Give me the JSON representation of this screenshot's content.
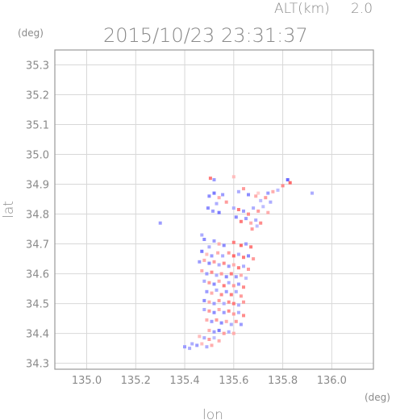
{
  "header": {
    "altitude_label": "ALT(km)",
    "altitude_value": "2.0",
    "timestamp": "2015/10/23 23:31:37"
  },
  "chart_data": {
    "type": "heatmap",
    "xlabel": "lon",
    "ylabel": "lat",
    "x_unit": "(deg)",
    "y_unit": "(deg)",
    "xlim": [
      134.87,
      136.17
    ],
    "ylim": [
      34.28,
      35.35
    ],
    "x_ticks": [
      135.0,
      135.2,
      135.4,
      135.6,
      135.8,
      136.0
    ],
    "x_tick_labels": [
      "135.0",
      "135.2",
      "135.4",
      "135.6",
      "135.8",
      "136.0"
    ],
    "y_ticks": [
      34.3,
      34.4,
      34.5,
      34.6,
      34.7,
      34.8,
      34.9,
      35.0,
      35.1,
      35.2,
      35.3
    ],
    "y_tick_labels": [
      "34.3",
      "34.4",
      "34.5",
      "34.6",
      "34.7",
      "34.8",
      "34.9",
      "35.0",
      "35.1",
      "35.2",
      "35.3"
    ],
    "grid": true,
    "colors": {
      "positive": "#ff5a5a",
      "negative": "#5a5aff",
      "frame": "#9a9a9a",
      "grid": "#d8d8d8"
    },
    "cells": [
      [
        135.505,
        34.92,
        0.8
      ],
      [
        135.52,
        34.915,
        -0.6
      ],
      [
        135.6,
        34.925,
        0.4
      ],
      [
        135.82,
        34.915,
        -0.9
      ],
      [
        135.83,
        34.905,
        0.9
      ],
      [
        135.8,
        34.895,
        0.7
      ],
      [
        135.92,
        34.87,
        -0.5
      ],
      [
        135.78,
        34.88,
        -0.4
      ],
      [
        135.76,
        34.875,
        0.5
      ],
      [
        135.74,
        34.87,
        -0.6
      ],
      [
        135.7,
        34.87,
        0.3
      ],
      [
        135.64,
        34.885,
        0.6
      ],
      [
        135.62,
        34.875,
        -0.5
      ],
      [
        135.66,
        34.865,
        -0.7
      ],
      [
        135.69,
        34.86,
        0.5
      ],
      [
        135.71,
        34.845,
        -0.4
      ],
      [
        135.73,
        34.855,
        0.6
      ],
      [
        135.75,
        34.84,
        -0.5
      ],
      [
        135.52,
        34.87,
        -0.8
      ],
      [
        135.5,
        34.86,
        -0.7
      ],
      [
        135.54,
        34.855,
        0.5
      ],
      [
        135.555,
        34.865,
        -0.6
      ],
      [
        135.53,
        34.835,
        -0.5
      ],
      [
        135.57,
        34.84,
        0.6
      ],
      [
        135.495,
        34.82,
        -0.7
      ],
      [
        135.515,
        34.81,
        -0.6
      ],
      [
        135.54,
        34.805,
        -0.8
      ],
      [
        135.6,
        34.82,
        -0.5
      ],
      [
        135.62,
        34.815,
        0.8
      ],
      [
        135.64,
        34.81,
        -0.6
      ],
      [
        135.66,
        34.8,
        0.7
      ],
      [
        135.68,
        34.82,
        -0.5
      ],
      [
        135.7,
        34.81,
        0.6
      ],
      [
        135.72,
        34.825,
        -0.4
      ],
      [
        135.74,
        34.805,
        0.5
      ],
      [
        135.61,
        34.79,
        -0.7
      ],
      [
        135.63,
        34.775,
        0.8
      ],
      [
        135.65,
        34.785,
        -0.6
      ],
      [
        135.67,
        34.77,
        0.5
      ],
      [
        135.69,
        34.78,
        -0.5
      ],
      [
        135.71,
        34.77,
        0.7
      ],
      [
        135.675,
        34.75,
        0.6
      ],
      [
        135.695,
        34.76,
        -0.4
      ],
      [
        135.3,
        34.77,
        -0.6
      ],
      [
        135.47,
        34.73,
        -0.5
      ],
      [
        135.48,
        34.715,
        -0.7
      ],
      [
        135.52,
        34.71,
        -0.6
      ],
      [
        135.54,
        34.7,
        0.5
      ],
      [
        135.56,
        34.695,
        -0.7
      ],
      [
        135.6,
        34.705,
        0.8
      ],
      [
        135.63,
        34.695,
        0.9
      ],
      [
        135.65,
        34.7,
        -0.6
      ],
      [
        135.67,
        34.69,
        0.8
      ],
      [
        135.5,
        34.69,
        -0.5
      ],
      [
        135.47,
        34.675,
        -0.8
      ],
      [
        135.49,
        34.665,
        0.4
      ],
      [
        135.51,
        34.66,
        -0.6
      ],
      [
        135.535,
        34.67,
        0.5
      ],
      [
        135.555,
        34.66,
        -0.5
      ],
      [
        135.58,
        34.67,
        0.6
      ],
      [
        135.6,
        34.66,
        0.9
      ],
      [
        135.62,
        34.665,
        -0.5
      ],
      [
        135.64,
        34.655,
        0.8
      ],
      [
        135.66,
        34.66,
        -0.7
      ],
      [
        135.68,
        34.65,
        0.6
      ],
      [
        135.46,
        34.64,
        -0.6
      ],
      [
        135.48,
        34.645,
        0.5
      ],
      [
        135.5,
        34.635,
        -0.7
      ],
      [
        135.52,
        34.64,
        0.6
      ],
      [
        135.54,
        34.63,
        -0.5
      ],
      [
        135.56,
        34.635,
        0.7
      ],
      [
        135.58,
        34.625,
        -0.6
      ],
      [
        135.6,
        34.63,
        0.5
      ],
      [
        135.62,
        34.62,
        0.8
      ],
      [
        135.64,
        34.625,
        -0.5
      ],
      [
        135.66,
        34.615,
        0.6
      ],
      [
        135.47,
        34.61,
        0.5
      ],
      [
        135.49,
        34.6,
        -0.6
      ],
      [
        135.51,
        34.605,
        0.7
      ],
      [
        135.53,
        34.595,
        -0.5
      ],
      [
        135.55,
        34.6,
        0.6
      ],
      [
        135.57,
        34.59,
        -0.7
      ],
      [
        135.59,
        34.6,
        0.8
      ],
      [
        135.61,
        34.59,
        -0.6
      ],
      [
        135.63,
        34.595,
        0.5
      ],
      [
        135.65,
        34.585,
        -0.4
      ],
      [
        135.48,
        34.575,
        -0.5
      ],
      [
        135.5,
        34.57,
        0.6
      ],
      [
        135.52,
        34.565,
        -0.7
      ],
      [
        135.54,
        34.575,
        0.5
      ],
      [
        135.56,
        34.56,
        0.8
      ],
      [
        135.58,
        34.57,
        -0.5
      ],
      [
        135.6,
        34.56,
        0.6
      ],
      [
        135.62,
        34.565,
        -0.6
      ],
      [
        135.64,
        34.555,
        0.7
      ],
      [
        135.49,
        34.54,
        -0.6
      ],
      [
        135.51,
        34.535,
        0.5
      ],
      [
        135.53,
        34.545,
        -0.5
      ],
      [
        135.55,
        34.53,
        0.7
      ],
      [
        135.57,
        34.54,
        -0.6
      ],
      [
        135.59,
        34.53,
        0.8
      ],
      [
        135.61,
        34.54,
        -0.5
      ],
      [
        135.63,
        34.525,
        0.6
      ],
      [
        135.48,
        34.51,
        -0.7
      ],
      [
        135.5,
        34.505,
        0.5
      ],
      [
        135.52,
        34.5,
        -0.6
      ],
      [
        135.54,
        34.51,
        0.6
      ],
      [
        135.56,
        34.5,
        -0.5
      ],
      [
        135.58,
        34.505,
        0.7
      ],
      [
        135.6,
        34.5,
        0.8
      ],
      [
        135.62,
        34.495,
        -0.5
      ],
      [
        135.64,
        34.505,
        0.6
      ],
      [
        135.48,
        34.48,
        -0.5
      ],
      [
        135.5,
        34.475,
        0.6
      ],
      [
        135.52,
        34.47,
        -0.7
      ],
      [
        135.54,
        34.48,
        0.5
      ],
      [
        135.56,
        34.47,
        -0.6
      ],
      [
        135.58,
        34.475,
        0.7
      ],
      [
        135.6,
        34.465,
        0.6
      ],
      [
        135.62,
        34.47,
        -0.5
      ],
      [
        135.64,
        34.46,
        0.7
      ],
      [
        135.49,
        34.445,
        0.5
      ],
      [
        135.51,
        34.44,
        -0.6
      ],
      [
        135.53,
        34.445,
        0.6
      ],
      [
        135.55,
        34.435,
        -0.7
      ],
      [
        135.57,
        34.44,
        0.5
      ],
      [
        135.59,
        34.43,
        -0.5
      ],
      [
        135.61,
        34.44,
        0.6
      ],
      [
        135.63,
        34.43,
        -0.6
      ],
      [
        135.5,
        34.41,
        0.5
      ],
      [
        135.52,
        34.405,
        -0.6
      ],
      [
        135.54,
        34.41,
        -0.8
      ],
      [
        135.56,
        34.4,
        0.6
      ],
      [
        135.58,
        34.405,
        -0.5
      ],
      [
        135.6,
        34.4,
        0.5
      ],
      [
        135.46,
        34.39,
        0.4
      ],
      [
        135.48,
        34.385,
        -0.5
      ],
      [
        135.5,
        34.38,
        0.6
      ],
      [
        135.52,
        34.385,
        -0.4
      ],
      [
        135.54,
        34.375,
        0.5
      ],
      [
        135.43,
        34.365,
        -0.5
      ],
      [
        135.45,
        34.36,
        -0.6
      ],
      [
        135.47,
        34.365,
        0.4
      ],
      [
        135.49,
        34.355,
        -0.5
      ],
      [
        135.51,
        34.36,
        0.5
      ],
      [
        135.4,
        34.355,
        -0.6
      ],
      [
        135.42,
        34.35,
        -0.5
      ]
    ]
  }
}
